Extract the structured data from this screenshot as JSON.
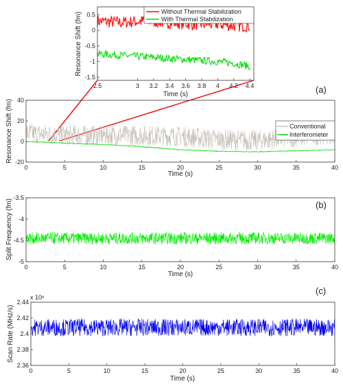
{
  "chart_data": [
    {
      "id": "inset",
      "type": "line",
      "xlabel": "Time (s)",
      "ylabel": "Resonance Shift (fm)",
      "xlim": [
        2.5,
        4.45
      ],
      "ylim": [
        -1.6,
        0.75
      ],
      "xticks": [
        2.5,
        3,
        3.2,
        3.4,
        3.6,
        3.8,
        4,
        4.2,
        4.4
      ],
      "xtick_labels": [
        "2.5",
        "3",
        "3.2",
        "3.4",
        "3.6",
        "3.8",
        "4",
        "4.2",
        "4.4"
      ],
      "yticks": [
        0.5,
        0,
        -0.5,
        -1,
        -1.5
      ],
      "ytick_labels": [
        "0.5",
        "0",
        "-0.5",
        "-1",
        "-1.5"
      ],
      "legend_position": "top-right",
      "series": [
        {
          "name": "Without Thermal Stabilization",
          "color": "#ff0000",
          "x": [
            2.5,
            2.8,
            3.1,
            3.4,
            3.7,
            4.0,
            4.2,
            4.4
          ],
          "y": [
            0.3,
            0.25,
            0.3,
            0.25,
            0.2,
            0.2,
            0.15,
            0.15
          ],
          "noise": 0.2
        },
        {
          "name": "With Thermal Stabilization",
          "color": "#00dd00",
          "x": [
            2.5,
            2.8,
            3.1,
            3.4,
            3.7,
            4.0,
            4.2,
            4.4
          ],
          "y": [
            -0.75,
            -0.8,
            -0.85,
            -0.9,
            -0.95,
            -1.0,
            -1.05,
            -1.15
          ],
          "noise": 0.12
        }
      ]
    },
    {
      "id": "a",
      "panel_label": "(a)",
      "type": "line",
      "xlabel": "Time (s)",
      "ylabel": "Resonance Shift (fm)",
      "xlim": [
        0,
        40
      ],
      "ylim": [
        -20,
        40
      ],
      "xticks": [
        0,
        5,
        10,
        15,
        20,
        25,
        30,
        35,
        40
      ],
      "xtick_labels": [
        "0",
        "5",
        "10",
        "15",
        "20",
        "25",
        "30",
        "35",
        "40"
      ],
      "yticks": [
        40,
        20,
        0,
        -20
      ],
      "ytick_labels": [
        "40",
        "20",
        "0",
        "-20"
      ],
      "legend_position": "top-right",
      "series": [
        {
          "name": "Conventional",
          "color": "#c8c4bc",
          "x": [
            0,
            5,
            10,
            15,
            20,
            25,
            30,
            35,
            40
          ],
          "y": [
            8,
            6,
            6,
            6,
            5,
            2,
            1,
            4,
            8
          ],
          "noise": 10
        },
        {
          "name": "Interferometer",
          "color": "#00dd00",
          "x": [
            0,
            5,
            10,
            15,
            20,
            25,
            30,
            35,
            40
          ],
          "y": [
            0,
            -1.5,
            -3,
            -5,
            -8,
            -9.5,
            -10,
            -9,
            -8
          ],
          "noise": 0.4
        }
      ]
    },
    {
      "id": "b",
      "panel_label": "(b)",
      "type": "line",
      "xlabel": "Time (s)",
      "ylabel": "Split Frequency (fm)",
      "xlim": [
        0,
        40
      ],
      "ylim": [
        -5,
        -3.5
      ],
      "xticks": [
        0,
        5,
        10,
        15,
        20,
        25,
        30,
        35,
        40
      ],
      "xtick_labels": [
        "0",
        "5",
        "10",
        "15",
        "20",
        "25",
        "30",
        "35",
        "40"
      ],
      "yticks": [
        -3.5,
        -4,
        -4.5,
        -5
      ],
      "ytick_labels": [
        "-3.5",
        "-4",
        "-4.5",
        "-5"
      ],
      "series": [
        {
          "color": "#00ee00",
          "x": [
            0,
            10,
            20,
            30,
            40
          ],
          "y": [
            -4.45,
            -4.45,
            -4.45,
            -4.45,
            -4.45
          ],
          "noise": 0.14
        }
      ]
    },
    {
      "id": "c",
      "panel_label": "(c)",
      "type": "line",
      "xlabel": "Time (s)",
      "ylabel": "Scan Rate (MHz/s)",
      "xlim": [
        0,
        40
      ],
      "ylim": [
        2.36,
        2.44
      ],
      "exponent_label": "x 10⁶",
      "xticks": [
        0,
        5,
        10,
        15,
        20,
        25,
        30,
        35,
        40
      ],
      "xtick_labels": [
        "0",
        "5",
        "10",
        "15",
        "20",
        "25",
        "30",
        "35",
        "40"
      ],
      "yticks": [
        2.44,
        2.42,
        2.4,
        2.38,
        2.36
      ],
      "ytick_labels": [
        "2.44",
        "2.42",
        "2.4",
        "2.38",
        "2.36"
      ],
      "series": [
        {
          "color": "#0000ee",
          "x": [
            0,
            10,
            20,
            30,
            40
          ],
          "y": [
            2.408,
            2.408,
            2.408,
            2.408,
            2.408
          ],
          "noise": 0.011
        }
      ]
    }
  ],
  "connector_lines": {
    "color": "#ee0000"
  }
}
